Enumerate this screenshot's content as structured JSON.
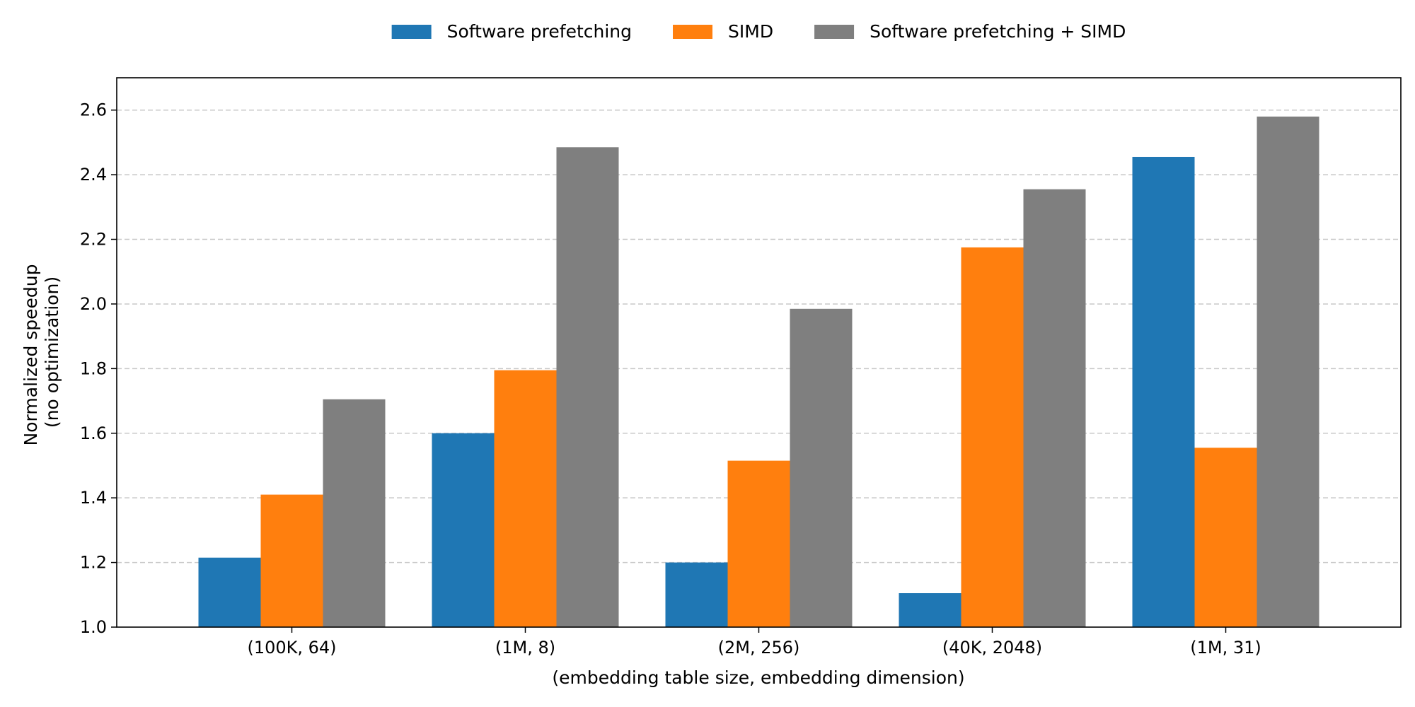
{
  "chart_data": {
    "type": "bar",
    "title": "",
    "xlabel": "(embedding table size, embedding dimension)",
    "ylabel": [
      "Normalized speedup",
      "(no optimization)"
    ],
    "categories": [
      "(100K, 64)",
      "(1M, 8)",
      "(2M, 256)",
      "(40K, 2048)",
      "(1M, 31)"
    ],
    "series": [
      {
        "name": "Software prefetching",
        "color": "#1f77b4",
        "values": [
          1.215,
          1.6,
          1.2,
          1.105,
          2.455
        ]
      },
      {
        "name": "SIMD",
        "color": "#ff7f0e",
        "values": [
          1.41,
          1.795,
          1.515,
          2.175,
          1.555
        ]
      },
      {
        "name": "Software prefetching + SIMD",
        "color": "#7f7f7f",
        "values": [
          1.705,
          2.485,
          1.985,
          2.355,
          2.58
        ]
      }
    ],
    "ylim": [
      1.0,
      2.7
    ],
    "yticks": [
      "1.0",
      "1.2",
      "1.4",
      "1.6",
      "1.8",
      "2.0",
      "2.2",
      "2.4",
      "2.6"
    ],
    "grid": "horizontal-dashed",
    "legend_position": "top-center"
  }
}
